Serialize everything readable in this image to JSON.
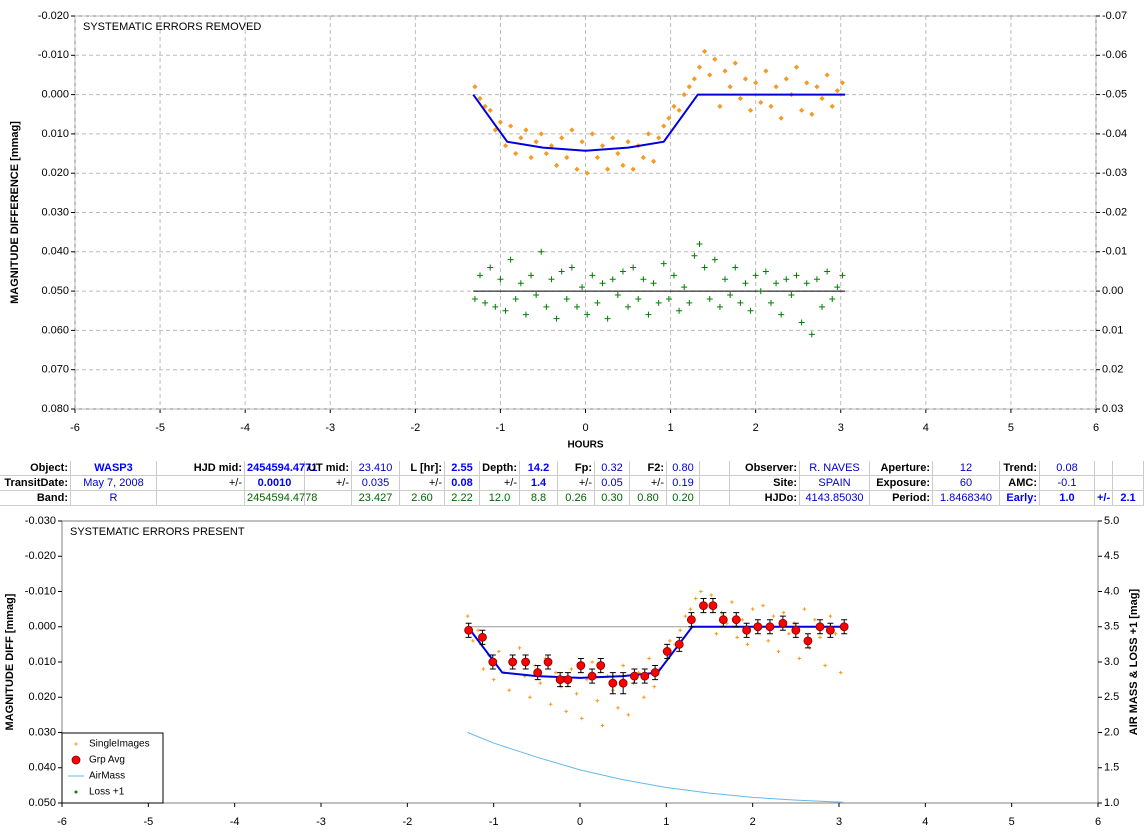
{
  "chart_data": [
    {
      "type": "scatter",
      "title": "SYSTEMATIC ERRORS REMOVED",
      "y_label": "MAGNITUDE DIFFERENCE [mmag]",
      "x_label": "HOURS",
      "xlim": [
        -6,
        6
      ],
      "xticks": [
        -6,
        -5,
        -4,
        -3,
        -2,
        -1,
        0,
        1,
        2,
        3,
        4,
        5,
        6
      ],
      "ylim": [
        -0.02,
        0.08
      ],
      "y_reversed": true,
      "yticks": [
        {
          "value": -0.02,
          "label": "-0.020"
        },
        {
          "value": -0.01,
          "label": "-0.010"
        },
        {
          "value": 0,
          "label": "0.000"
        },
        {
          "value": 0.01,
          "label": "0.010"
        },
        {
          "value": 0.02,
          "label": "0.020"
        },
        {
          "value": 0.03,
          "label": "0.030"
        },
        {
          "value": 0.04,
          "label": "0.040"
        },
        {
          "value": 0.05,
          "label": "0.050"
        },
        {
          "value": 0.06,
          "label": "0.060"
        },
        {
          "value": 0.07,
          "label": "0.070"
        },
        {
          "value": 0.08,
          "label": "0.080"
        }
      ],
      "y2lim": [
        -0.07,
        0.03
      ],
      "y2_reversed": true,
      "y2ticks": [
        -0.07,
        -0.06,
        -0.05,
        -0.04,
        -0.03,
        -0.02,
        -0.01,
        {
          "value": 0,
          "label": "0.00"
        },
        0.01,
        0.02,
        0.03
      ],
      "grid": true,
      "series": [
        {
          "marker": "diamond",
          "color": "#f59a23",
          "x": [
            -1.3,
            -1.24,
            -1.18,
            -1.12,
            -1.06,
            -1.0,
            -0.94,
            -0.88,
            -0.82,
            -0.76,
            -0.7,
            -0.64,
            -0.58,
            -0.52,
            -0.46,
            -0.4,
            -0.34,
            -0.28,
            -0.22,
            -0.16,
            -0.1,
            -0.04,
            0.02,
            0.08,
            0.14,
            0.2,
            0.26,
            0.32,
            0.38,
            0.44,
            0.5,
            0.56,
            0.62,
            0.68,
            0.74,
            0.8,
            0.86,
            0.92,
            0.98,
            1.04,
            1.1,
            1.16,
            1.22,
            1.28,
            1.34,
            1.4,
            1.46,
            1.52,
            1.58,
            1.64,
            1.7,
            1.76,
            1.82,
            1.88,
            1.94,
            2.0,
            2.06,
            2.12,
            2.18,
            2.24,
            2.3,
            2.36,
            2.42,
            2.48,
            2.54,
            2.6,
            2.66,
            2.72,
            2.78,
            2.84,
            2.9,
            2.96,
            3.02
          ],
          "values": [
            -0.002,
            0.001,
            0.003,
            0.004,
            0.009,
            0.007,
            0.013,
            0.008,
            0.015,
            0.011,
            0.009,
            0.016,
            0.012,
            0.01,
            0.015,
            0.013,
            0.018,
            0.011,
            0.016,
            0.009,
            0.019,
            0.012,
            0.02,
            0.01,
            0.016,
            0.013,
            0.019,
            0.011,
            0.015,
            0.018,
            0.012,
            0.019,
            0.013,
            0.016,
            0.01,
            0.017,
            0.011,
            0.008,
            0.006,
            0.003,
            0.004,
            0.0,
            -0.002,
            -0.004,
            -0.007,
            -0.011,
            -0.005,
            -0.009,
            0.003,
            -0.006,
            -0.002,
            -0.008,
            0.001,
            -0.004,
            0.004,
            -0.003,
            0.002,
            -0.006,
            0.003,
            -0.002,
            0.006,
            -0.004,
            0.0,
            -0.007,
            0.004,
            -0.003,
            0.005,
            -0.002,
            0.001,
            -0.005,
            0.003,
            -0.001,
            -0.003
          ]
        },
        {
          "marker": "line",
          "color": "#0000dd",
          "width": 2,
          "x": [
            -1.32,
            -0.92,
            -0.5,
            0,
            0.5,
            0.92,
            1.32,
            3.05
          ],
          "values": [
            0,
            0.012,
            0.0135,
            0.0143,
            0.0135,
            0.012,
            0,
            0
          ]
        },
        {
          "marker": "line",
          "color": "#000000",
          "width": 1,
          "axis": "y2",
          "x": [
            -1.32,
            3.05
          ],
          "values": [
            0,
            0
          ]
        },
        {
          "marker": "plus",
          "color": "#008000",
          "axis": "y2",
          "x": [
            -1.3,
            -1.24,
            -1.18,
            -1.12,
            -1.06,
            -1.0,
            -0.94,
            -0.88,
            -0.82,
            -0.76,
            -0.7,
            -0.64,
            -0.58,
            -0.52,
            -0.46,
            -0.4,
            -0.34,
            -0.28,
            -0.22,
            -0.16,
            -0.1,
            -0.04,
            0.02,
            0.08,
            0.14,
            0.2,
            0.26,
            0.32,
            0.38,
            0.44,
            0.5,
            0.56,
            0.62,
            0.68,
            0.74,
            0.8,
            0.86,
            0.92,
            0.98,
            1.04,
            1.1,
            1.16,
            1.22,
            1.28,
            1.34,
            1.4,
            1.46,
            1.52,
            1.58,
            1.64,
            1.7,
            1.76,
            1.82,
            1.88,
            1.94,
            2.0,
            2.06,
            2.12,
            2.18,
            2.24,
            2.3,
            2.36,
            2.42,
            2.48,
            2.54,
            2.6,
            2.66,
            2.72,
            2.78,
            2.84,
            2.9,
            2.96,
            3.02
          ],
          "values": [
            0.002,
            -0.004,
            0.003,
            -0.006,
            0.004,
            -0.003,
            0.005,
            -0.008,
            0.002,
            -0.002,
            0.006,
            -0.004,
            0.001,
            -0.01,
            0.004,
            -0.003,
            0.007,
            -0.005,
            0.002,
            -0.006,
            0.004,
            -0.001,
            0.006,
            -0.004,
            0.003,
            -0.002,
            0.007,
            -0.003,
            0.001,
            -0.005,
            0.004,
            -0.006,
            0.002,
            -0.003,
            0.006,
            -0.002,
            0.003,
            -0.007,
            0.002,
            -0.004,
            0.005,
            -0.001,
            0.003,
            -0.009,
            -0.012,
            -0.006,
            0.002,
            -0.008,
            0.004,
            -0.003,
            0.001,
            -0.006,
            0.003,
            -0.002,
            0.005,
            -0.004,
            0.0,
            -0.005,
            0.003,
            -0.002,
            0.006,
            -0.003,
            0.001,
            -0.004,
            0.008,
            -0.002,
            0.011,
            -0.003,
            0.004,
            -0.005,
            0.002,
            -0.001,
            -0.004
          ]
        }
      ]
    },
    {
      "type": "scatter",
      "title": "SYSTEMATIC ERRORS PRESENT",
      "y_label": "MAGNITUDE DIFF [mmag]",
      "y2_label": "AIR MASS & LOSS +1 [mag]",
      "xlim": [
        -6,
        6
      ],
      "xticks": [
        -6,
        -5,
        -4,
        -3,
        -2,
        -1,
        0,
        1,
        2,
        3,
        4,
        5,
        6
      ],
      "ylim": [
        -0.03,
        0.05
      ],
      "y_reversed": true,
      "yticks": [
        {
          "value": -0.03,
          "label": "-0.030"
        },
        {
          "value": -0.02,
          "label": "-0.020"
        },
        {
          "value": -0.01,
          "label": "-0.010"
        },
        {
          "value": 0,
          "label": "0.000"
        },
        {
          "value": 0.01,
          "label": "0.010"
        },
        {
          "value": 0.02,
          "label": "0.020"
        },
        {
          "value": 0.03,
          "label": "0.030"
        },
        {
          "value": 0.04,
          "label": "0.040"
        },
        {
          "value": 0.05,
          "label": "0.050"
        }
      ],
      "y2lim": [
        1,
        5
      ],
      "y2_reversed": false,
      "y2ticks": [
        {
          "value": 1,
          "label": "1.0"
        },
        {
          "value": 1.5,
          "label": "1.5"
        },
        {
          "value": 2,
          "label": "2.0"
        },
        {
          "value": 2.5,
          "label": "2.5"
        },
        {
          "value": 3,
          "label": "3.0"
        },
        {
          "value": 3.5,
          "label": "3.5"
        },
        {
          "value": 4,
          "label": "4.0"
        },
        {
          "value": 4.5,
          "label": "4.5"
        },
        {
          "value": 5,
          "label": "5.0"
        }
      ],
      "grid": false,
      "legend": "lower left",
      "series": [
        {
          "marker": "line",
          "color": "#999999",
          "width": 1,
          "x": [
            -1.3,
            3.05
          ],
          "values": [
            0,
            0
          ]
        },
        {
          "name": "SingleImages",
          "marker": "plus-small",
          "color": "#f59a23",
          "x": [
            -1.3,
            -1.24,
            -1.18,
            -1.12,
            -1.06,
            -1.0,
            -0.94,
            -0.88,
            -0.82,
            -0.76,
            -0.7,
            -0.64,
            -0.58,
            -0.52,
            -0.46,
            -0.4,
            -0.34,
            -0.28,
            -0.22,
            -0.16,
            -0.1,
            -0.04,
            0.02,
            0.08,
            0.14,
            0.2,
            0.26,
            0.32,
            0.38,
            0.44,
            0.5,
            0.56,
            0.62,
            0.68,
            0.74,
            0.8,
            0.86,
            0.92,
            0.98,
            1.04,
            1.1,
            1.16,
            1.22,
            1.28,
            1.34,
            1.4,
            1.46,
            1.52,
            1.58,
            1.64,
            1.7,
            1.76,
            1.82,
            1.88,
            1.94,
            2.0,
            2.06,
            2.12,
            2.18,
            2.24,
            2.3,
            2.36,
            2.42,
            2.48,
            2.54,
            2.6,
            2.66,
            2.72,
            2.78,
            2.84,
            2.9,
            2.96,
            3.02
          ],
          "values": [
            -0.003,
            0.004,
            0.001,
            0.012,
            0.008,
            0.015,
            0.007,
            0.013,
            0.018,
            0.01,
            0.006,
            0.014,
            0.02,
            0.011,
            0.016,
            0.009,
            0.022,
            0.013,
            0.017,
            0.024,
            0.012,
            0.019,
            0.026,
            0.015,
            0.01,
            0.021,
            0.028,
            0.014,
            0.018,
            0.023,
            0.011,
            0.025,
            0.016,
            0.013,
            0.02,
            0.009,
            0.017,
            0.012,
            0.007,
            0.004,
            0.005,
            0.001,
            -0.003,
            -0.005,
            -0.008,
            -0.01,
            -0.006,
            -0.009,
            0.002,
            -0.004,
            -0.001,
            -0.007,
            0.003,
            -0.002,
            0.005,
            -0.005,
            0.001,
            -0.006,
            0.004,
            -0.003,
            0.007,
            -0.004,
            0.002,
            -0.001,
            0.009,
            -0.005,
            0.006,
            -0.002,
            0.003,
            0.011,
            -0.003,
            0.002,
            0.013
          ]
        },
        {
          "marker": "line",
          "color": "#0000dd",
          "width": 2,
          "x": [
            -1.3,
            -0.9,
            -0.5,
            0,
            0.5,
            0.9,
            1.3,
            3.05
          ],
          "values": [
            0,
            0.013,
            0.014,
            0.0145,
            0.014,
            0.013,
            0,
            0
          ]
        },
        {
          "name": "Grp Avg",
          "marker": "circle",
          "color": "#ff0000",
          "x": [
            -1.29,
            -1.13,
            -1.01,
            -0.78,
            -0.63,
            -0.49,
            -0.37,
            -0.23,
            -0.14,
            0.01,
            0.14,
            0.24,
            0.38,
            0.5,
            0.63,
            0.75,
            0.87,
            1.01,
            1.15,
            1.29,
            1.43,
            1.54,
            1.66,
            1.81,
            1.93,
            2.06,
            2.2,
            2.35,
            2.5,
            2.64,
            2.78,
            2.9,
            3.06
          ],
          "values": [
            0.001,
            0.003,
            0.01,
            0.01,
            0.01,
            0.013,
            0.01,
            0.015,
            0.015,
            0.011,
            0.014,
            0.011,
            0.016,
            0.016,
            0.014,
            0.014,
            0.013,
            0.007,
            0.005,
            -0.002,
            -0.006,
            -0.006,
            -0.002,
            -0.002,
            0.001,
            0.0,
            0.0,
            -0.001,
            0.001,
            0.004,
            0.0,
            0.001,
            0.0
          ],
          "errors": [
            0.002,
            0.002,
            0.002,
            0.002,
            0.002,
            0.002,
            0.002,
            0.002,
            0.002,
            0.002,
            0.002,
            0.002,
            0.003,
            0.003,
            0.002,
            0.002,
            0.002,
            0.002,
            0.002,
            0.002,
            0.002,
            0.002,
            0.002,
            0.002,
            0.002,
            0.002,
            0.002,
            0.002,
            0.002,
            0.002,
            0.002,
            0.002,
            0.002
          ]
        },
        {
          "name": "AirMass",
          "marker": "line",
          "color": "#66b8e8",
          "width": 1,
          "axis": "y2",
          "x": [
            -1.3,
            -1,
            -0.5,
            0,
            0.5,
            1,
            1.5,
            2,
            2.5,
            3.05
          ],
          "values": [
            2.0,
            1.85,
            1.65,
            1.47,
            1.33,
            1.22,
            1.14,
            1.08,
            1.04,
            1.01
          ]
        },
        {
          "name": "Loss +1",
          "marker": "dot",
          "color": "#008000",
          "axis": "y2",
          "x": [],
          "values": []
        }
      ]
    }
  ],
  "table": {
    "rows": [
      [
        "Object:",
        "WASP3",
        "HJD mid:",
        "2454594.4771",
        "UT mid:",
        "23.410",
        "L [hr]:",
        "2.55",
        "Depth:",
        "14.2",
        "Fp:",
        "0.32",
        "F2:",
        "0.80",
        null,
        "Observer:",
        "R. NAVES",
        "Aperture:",
        "12",
        "Trend:",
        "0.08",
        null,
        null
      ],
      [
        "TransitDate:",
        "May 7, 2008",
        "+/-",
        "0.0010",
        "+/-",
        "0.035",
        "+/-",
        "0.08",
        "+/-",
        "1.4",
        "+/-",
        "0.05",
        "+/-",
        "0.19",
        null,
        "Site:",
        "SPAIN",
        "Exposure:",
        "60",
        "AMC:",
        "-0.1",
        null,
        null
      ],
      [
        "Band:",
        "R",
        null,
        "2454594.4778",
        null,
        "23.427",
        "2.60",
        "2.22",
        "12.0",
        "8.8",
        "0.26",
        "0.30",
        "0.80",
        "0.20",
        null,
        "HJDo:",
        "4143.85030",
        "Period:",
        "1.8468340",
        "Early:",
        "1.0",
        "+/-",
        "2.1"
      ]
    ]
  }
}
